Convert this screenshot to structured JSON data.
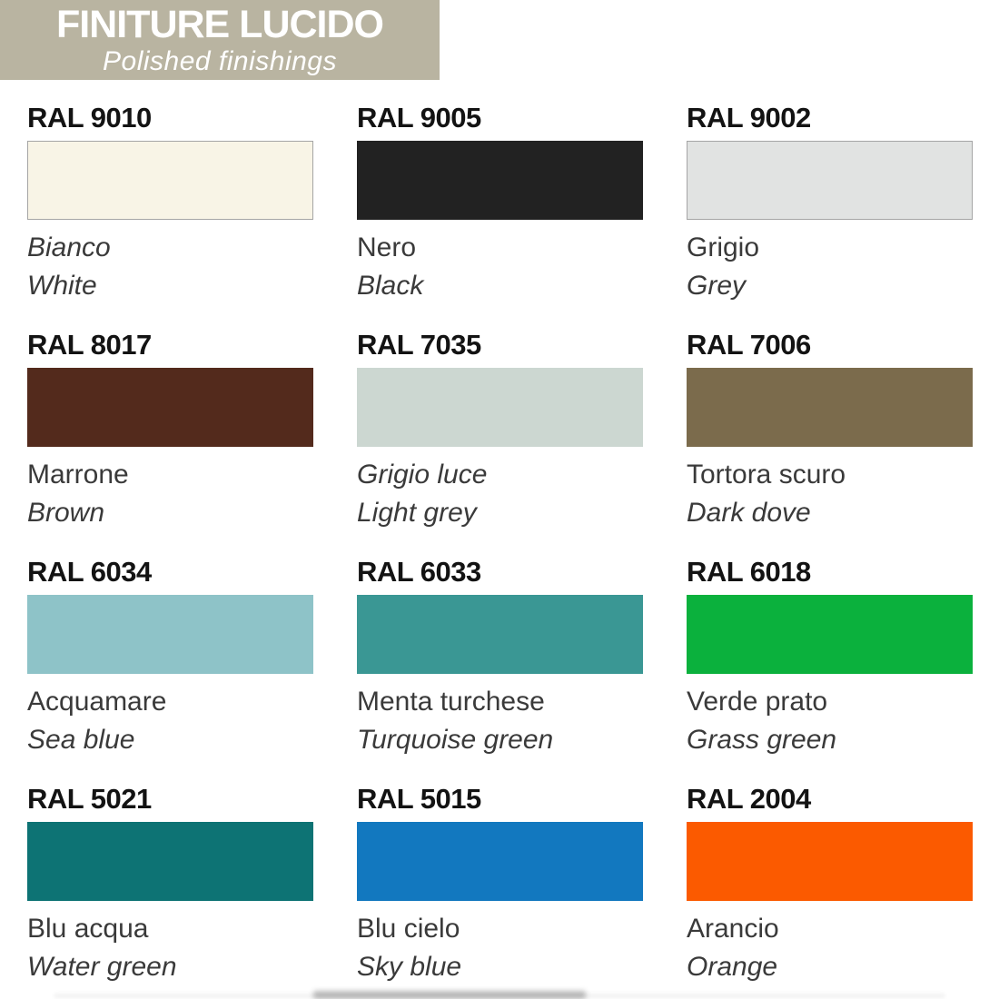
{
  "header": {
    "title": "FINITURE LUCIDO",
    "subtitle": "Polished finishings",
    "banner_color": "#b9b4a1",
    "text_color": "#ffffff"
  },
  "palette": {
    "items": [
      {
        "code": "RAL 9010",
        "name_it": "Bianco",
        "name_en": "White",
        "hex": "#f8f4e6",
        "bordered": true,
        "name_it_italic": true
      },
      {
        "code": "RAL 9005",
        "name_it": "Nero",
        "name_en": "Black",
        "hex": "#222222",
        "bordered": false,
        "name_it_italic": false
      },
      {
        "code": "RAL 9002",
        "name_it": "Grigio",
        "name_en": "Grey",
        "hex": "#e1e3e2",
        "bordered": true,
        "name_it_italic": false
      },
      {
        "code": "RAL 8017",
        "name_it": "Marrone",
        "name_en": "Brown",
        "hex": "#532a1c",
        "bordered": false,
        "name_it_italic": false
      },
      {
        "code": "RAL 7035",
        "name_it": "Grigio luce",
        "name_en": "Light grey",
        "hex": "#ccd7d1",
        "bordered": false,
        "name_it_italic": true
      },
      {
        "code": "RAL 7006",
        "name_it": "Tortora scuro",
        "name_en": "Dark dove",
        "hex": "#7b6b4c",
        "bordered": false,
        "name_it_italic": false
      },
      {
        "code": "RAL 6034",
        "name_it": "Acquamare",
        "name_en": "Sea blue",
        "hex": "#8ec3c8",
        "bordered": false,
        "name_it_italic": false
      },
      {
        "code": "RAL 6033",
        "name_it": "Menta turchese",
        "name_en": "Turquoise green",
        "hex": "#3a9794",
        "bordered": false,
        "name_it_italic": false
      },
      {
        "code": "RAL 6018",
        "name_it": "Verde prato",
        "name_en": "Grass green",
        "hex": "#0bb13d",
        "bordered": false,
        "name_it_italic": false
      },
      {
        "code": "RAL 5021",
        "name_it": "Blu acqua",
        "name_en": "Water green",
        "hex": "#0d7374",
        "bordered": false,
        "name_it_italic": false
      },
      {
        "code": "RAL 5015",
        "name_it": "Blu cielo",
        "name_en": "Sky blue",
        "hex": "#1278bf",
        "bordered": false,
        "name_it_italic": false
      },
      {
        "code": "RAL 2004",
        "name_it": "Arancio",
        "name_en": "Orange",
        "hex": "#fb5a00",
        "bordered": false,
        "name_it_italic": false
      }
    ]
  }
}
